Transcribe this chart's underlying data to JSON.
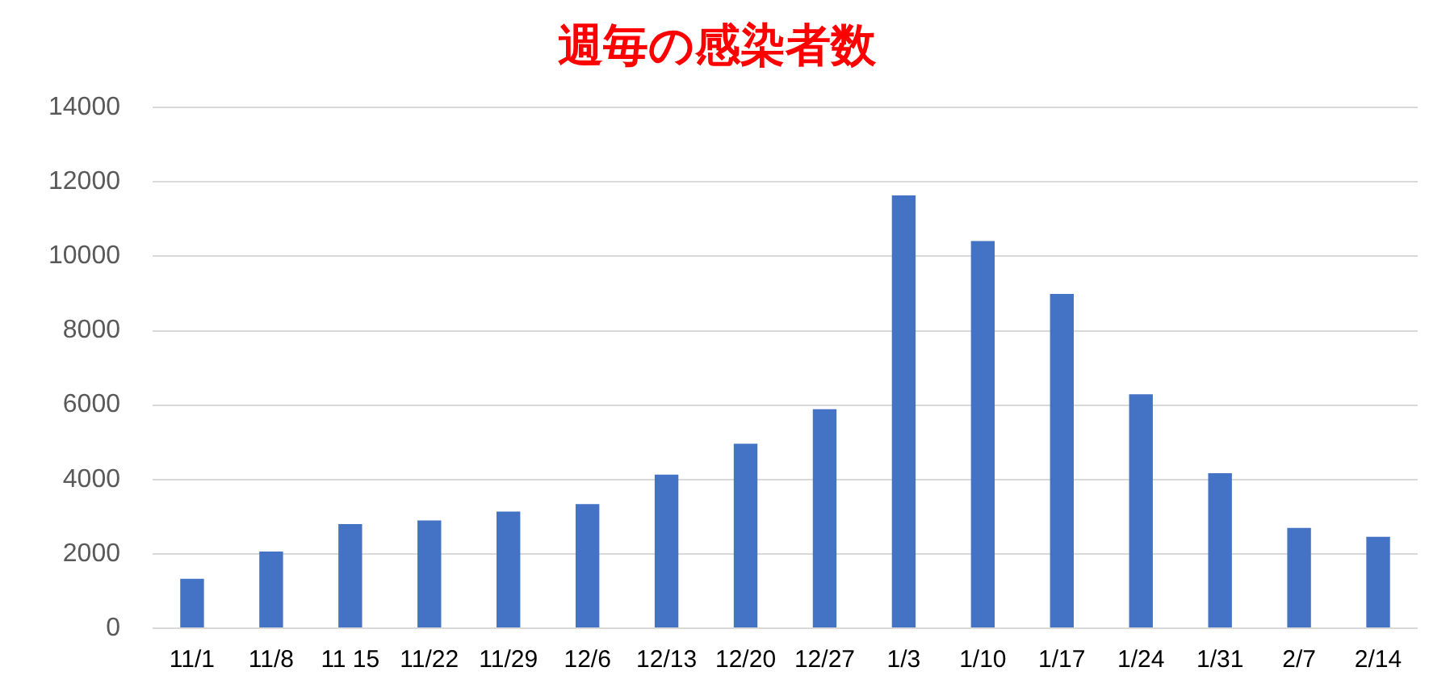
{
  "chart_data": {
    "type": "bar",
    "title": "週毎の感染者数",
    "categories": [
      "11/1",
      "11/8",
      "11 15",
      "11/22",
      "11/29",
      "12/6",
      "12/13",
      "12/20",
      "12/27",
      "1/3",
      "1/10",
      "1/17",
      "1/24",
      "1/31",
      "2/7",
      "2/14"
    ],
    "values": [
      1330,
      2060,
      2800,
      2900,
      3140,
      3340,
      4130,
      4960,
      5890,
      11640,
      10410,
      8990,
      6290,
      4170,
      2700,
      2460
    ],
    "color": "#4472c4",
    "ylim": [
      0,
      14000
    ],
    "yticks": [
      0,
      2000,
      4000,
      6000,
      8000,
      10000,
      12000,
      14000
    ],
    "grid": "y",
    "legend": false
  }
}
